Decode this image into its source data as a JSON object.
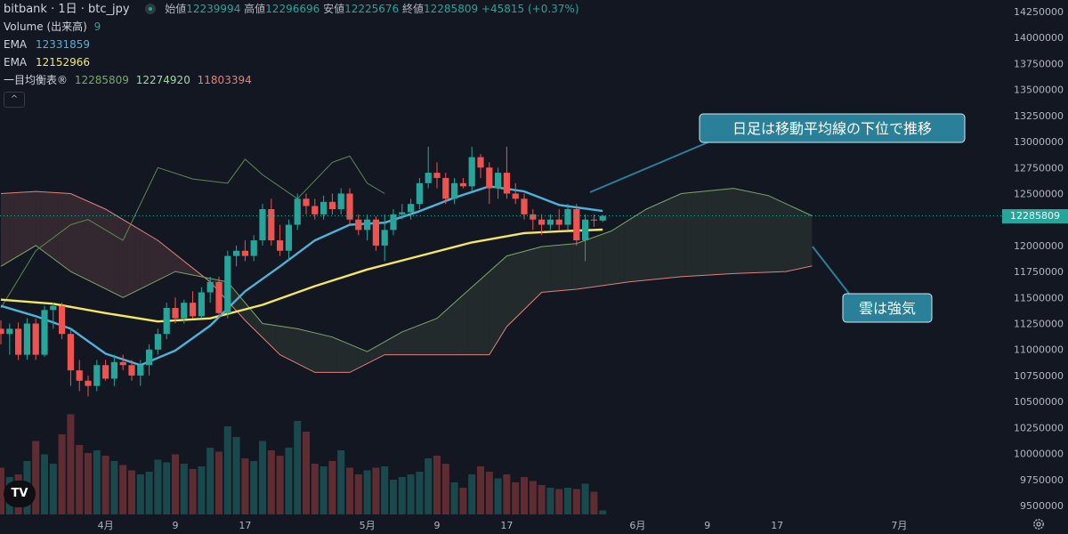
{
  "header": {
    "symbol": "bitbank · 1日 · btc_jpy",
    "open_label": "始値",
    "open_value": "12239994",
    "high_label": "高値",
    "high_value": "12296696",
    "low_label": "安値",
    "low_value": "12225676",
    "close_label": "終値",
    "close_value": "12285809",
    "change": "+45815 (+0.37%)"
  },
  "indicators": {
    "volume_label": "Volume (出来高)",
    "volume_value": "9",
    "ema1_label": "EMA",
    "ema1_value": "12331859",
    "ema2_label": "EMA",
    "ema2_value": "12152966",
    "ichimoku_label": "一目均衡表®",
    "ichimoku_v1": "12285809",
    "ichimoku_v2": "12274920",
    "ichimoku_v3": "11803394",
    "collapse_glyph": "^"
  },
  "logo_text": "TV",
  "current_price_tag": "12285809",
  "colors": {
    "background": "#131722",
    "up": "#26a69a",
    "down": "#ef5350",
    "ema_fast": "#4fb3d9",
    "ema_slow": "#f5e663",
    "span_a": "#7ca66a",
    "span_b": "#e0827d",
    "callout": "#2a7f99"
  },
  "chart_data": {
    "type": "candlestick",
    "interval": "1D",
    "ylim": [
      9400000,
      14350000
    ],
    "y_ticks": [
      9500000,
      9750000,
      10000000,
      10250000,
      10500000,
      10750000,
      11000000,
      11250000,
      11500000,
      11750000,
      12000000,
      12250000,
      12500000,
      12750000,
      13000000,
      13250000,
      13500000,
      13750000,
      14000000,
      14250000
    ],
    "x_ticks": [
      {
        "label": "4月",
        "day": 12
      },
      {
        "label": "9",
        "day": 20
      },
      {
        "label": "17",
        "day": 28
      },
      {
        "label": "5月",
        "day": 42
      },
      {
        "label": "9",
        "day": 50
      },
      {
        "label": "17",
        "day": 58
      },
      {
        "label": "6月",
        "day": 73
      },
      {
        "label": "9",
        "day": 81
      },
      {
        "label": "17",
        "day": 89
      },
      {
        "label": "7月",
        "day": 103
      }
    ],
    "candles": [
      [
        0,
        11200000,
        11280000,
        11050000,
        11150000
      ],
      [
        1,
        11150000,
        11250000,
        10950000,
        11200000
      ],
      [
        2,
        11200000,
        11260000,
        10900000,
        10950000
      ],
      [
        3,
        10950000,
        11300000,
        10900000,
        11250000
      ],
      [
        4,
        11250000,
        11300000,
        10900000,
        10950000
      ],
      [
        5,
        10950000,
        11420000,
        10930000,
        11380000
      ],
      [
        6,
        11380000,
        11450000,
        11200000,
        11420000
      ],
      [
        7,
        11420000,
        11450000,
        11100000,
        11150000
      ],
      [
        8,
        11150000,
        11200000,
        10650000,
        10800000
      ],
      [
        9,
        10800000,
        10900000,
        10600000,
        10700000
      ],
      [
        10,
        10700000,
        10750000,
        10550000,
        10650000
      ],
      [
        11,
        10650000,
        10900000,
        10600000,
        10850000
      ],
      [
        12,
        10850000,
        10900000,
        10700000,
        10720000
      ],
      [
        13,
        10720000,
        10950000,
        10650000,
        10880000
      ],
      [
        14,
        10880000,
        10950000,
        10800000,
        10850000
      ],
      [
        15,
        10850000,
        10900000,
        10700000,
        10750000
      ],
      [
        16,
        10750000,
        10900000,
        10650000,
        10850000
      ],
      [
        17,
        10850000,
        11050000,
        10750000,
        11000000
      ],
      [
        18,
        11000000,
        11200000,
        10950000,
        11150000
      ],
      [
        19,
        11150000,
        11450000,
        11100000,
        11400000
      ],
      [
        20,
        11400000,
        11500000,
        11250000,
        11300000
      ],
      [
        21,
        11300000,
        11480000,
        11250000,
        11450000
      ],
      [
        22,
        11450000,
        11560000,
        11300000,
        11320000
      ],
      [
        23,
        11320000,
        11600000,
        11300000,
        11550000
      ],
      [
        24,
        11550000,
        11700000,
        11450000,
        11650000
      ],
      [
        25,
        11650000,
        11700000,
        11300000,
        11350000
      ],
      [
        26,
        11350000,
        11950000,
        11300000,
        11900000
      ],
      [
        27,
        11900000,
        12000000,
        11800000,
        11950000
      ],
      [
        28,
        11950000,
        12050000,
        11850000,
        11900000
      ],
      [
        29,
        11900000,
        12100000,
        11850000,
        12050000
      ],
      [
        30,
        12050000,
        12400000,
        12000000,
        12350000
      ],
      [
        31,
        12350000,
        12450000,
        12000000,
        12050000
      ],
      [
        32,
        12050000,
        12200000,
        11900000,
        11950000
      ],
      [
        33,
        11950000,
        12250000,
        11850000,
        12200000
      ],
      [
        34,
        12200000,
        12500000,
        12150000,
        12450000
      ],
      [
        35,
        12450000,
        12500000,
        12300000,
        12380000
      ],
      [
        36,
        12380000,
        12450000,
        12250000,
        12300000
      ],
      [
        37,
        12300000,
        12480000,
        12250000,
        12420000
      ],
      [
        38,
        12420000,
        12500000,
        12300000,
        12350000
      ],
      [
        39,
        12350000,
        12550000,
        12300000,
        12500000
      ],
      [
        40,
        12500000,
        12550000,
        12200000,
        12250000
      ],
      [
        41,
        12250000,
        12300000,
        12100000,
        12150000
      ],
      [
        42,
        12150000,
        12300000,
        12050000,
        12250000
      ],
      [
        43,
        12250000,
        12280000,
        11950000,
        12000000
      ],
      [
        44,
        12000000,
        12300000,
        11850000,
        12150000
      ],
      [
        45,
        12150000,
        12350000,
        12100000,
        12300000
      ],
      [
        46,
        12300000,
        12400000,
        12250000,
        12320000
      ],
      [
        47,
        12320000,
        12450000,
        12250000,
        12400000
      ],
      [
        48,
        12400000,
        12650000,
        12350000,
        12600000
      ],
      [
        49,
        12600000,
        12950000,
        12550000,
        12700000
      ],
      [
        50,
        12700000,
        12800000,
        12550000,
        12650000
      ],
      [
        51,
        12650000,
        12700000,
        12400000,
        12450000
      ],
      [
        52,
        12450000,
        12650000,
        12400000,
        12600000
      ],
      [
        53,
        12600000,
        12650000,
        12550000,
        12570000
      ],
      [
        54,
        12570000,
        12950000,
        12520000,
        12850000
      ],
      [
        55,
        12850000,
        12880000,
        12650000,
        12750000
      ],
      [
        56,
        12750000,
        12800000,
        12400000,
        12550000
      ],
      [
        57,
        12550000,
        12750000,
        12450000,
        12700000
      ],
      [
        58,
        12700000,
        12950000,
        12450000,
        12500000
      ],
      [
        59,
        12500000,
        12600000,
        12400000,
        12450000
      ],
      [
        60,
        12450000,
        12500000,
        12250000,
        12300000
      ],
      [
        61,
        12300000,
        12350000,
        12150000,
        12250000
      ],
      [
        62,
        12250000,
        12300000,
        12100000,
        12200000
      ],
      [
        63,
        12200000,
        12300000,
        12150000,
        12250000
      ],
      [
        64,
        12250000,
        12350000,
        12150000,
        12200000
      ],
      [
        65,
        12200000,
        12400000,
        12150000,
        12350000
      ],
      [
        66,
        12350000,
        12400000,
        12000000,
        12050000
      ],
      [
        67,
        12050000,
        12300000,
        11850000,
        12250000
      ],
      [
        68,
        12250000,
        12300000,
        12180000,
        12240000
      ],
      [
        69,
        12239994,
        12296696,
        12225676,
        12285809
      ]
    ],
    "ema_fast": [
      [
        0,
        11420000
      ],
      [
        4,
        11320000
      ],
      [
        8,
        11200000
      ],
      [
        12,
        10960000
      ],
      [
        16,
        10850000
      ],
      [
        20,
        10990000
      ],
      [
        24,
        11230000
      ],
      [
        28,
        11560000
      ],
      [
        32,
        11800000
      ],
      [
        36,
        12050000
      ],
      [
        40,
        12200000
      ],
      [
        44,
        12220000
      ],
      [
        48,
        12330000
      ],
      [
        52,
        12460000
      ],
      [
        56,
        12570000
      ],
      [
        60,
        12520000
      ],
      [
        64,
        12390000
      ],
      [
        69,
        12331859
      ]
    ],
    "ema_slow": [
      [
        0,
        11480000
      ],
      [
        6,
        11440000
      ],
      [
        12,
        11350000
      ],
      [
        18,
        11270000
      ],
      [
        24,
        11300000
      ],
      [
        30,
        11430000
      ],
      [
        36,
        11610000
      ],
      [
        42,
        11770000
      ],
      [
        48,
        11900000
      ],
      [
        54,
        12030000
      ],
      [
        60,
        12120000
      ],
      [
        65,
        12140000
      ],
      [
        69,
        12152966
      ]
    ],
    "tenkan_like_span_a": [
      [
        0,
        11800000
      ],
      [
        4,
        12000000
      ],
      [
        8,
        11750000
      ],
      [
        14,
        11500000
      ],
      [
        20,
        11750000
      ],
      [
        26,
        11650000
      ],
      [
        30,
        11250000
      ],
      [
        34,
        11200000
      ],
      [
        38,
        11120000
      ],
      [
        42,
        10980000
      ],
      [
        46,
        11170000
      ],
      [
        50,
        11300000
      ],
      [
        54,
        11600000
      ],
      [
        58,
        11900000
      ],
      [
        62,
        11990000
      ],
      [
        66,
        12020000
      ],
      [
        70,
        12140000
      ],
      [
        74,
        12350000
      ],
      [
        78,
        12500000
      ],
      [
        84,
        12550000
      ],
      [
        88,
        12480000
      ],
      [
        93,
        12285809
      ]
    ],
    "span_b": [
      [
        0,
        12500000
      ],
      [
        4,
        12520000
      ],
      [
        8,
        12500000
      ],
      [
        12,
        12350000
      ],
      [
        18,
        12050000
      ],
      [
        24,
        11650000
      ],
      [
        28,
        11280000
      ],
      [
        32,
        10950000
      ],
      [
        36,
        10780000
      ],
      [
        40,
        10780000
      ],
      [
        44,
        10950000
      ],
      [
        50,
        10950000
      ],
      [
        56,
        10950000
      ],
      [
        58,
        11220000
      ],
      [
        62,
        11550000
      ],
      [
        66,
        11580000
      ],
      [
        72,
        11650000
      ],
      [
        78,
        11700000
      ],
      [
        84,
        11730000
      ],
      [
        90,
        11750000
      ],
      [
        93,
        11803394
      ]
    ],
    "lagging_span": [
      [
        0,
        11400000
      ],
      [
        4,
        11950000
      ],
      [
        8,
        12200000
      ],
      [
        10,
        12250000
      ],
      [
        14,
        12050000
      ],
      [
        18,
        12750000
      ],
      [
        22,
        12640000
      ],
      [
        26,
        12600000
      ],
      [
        28,
        12830000
      ],
      [
        30,
        12680000
      ],
      [
        34,
        12450000
      ],
      [
        38,
        12800000
      ],
      [
        40,
        12860000
      ],
      [
        42,
        12600000
      ],
      [
        44,
        12500000
      ]
    ],
    "volume": [
      [
        0,
        0.35
      ],
      [
        1,
        0.28
      ],
      [
        2,
        0.3
      ],
      [
        3,
        0.4
      ],
      [
        4,
        0.55
      ],
      [
        5,
        0.45
      ],
      [
        6,
        0.38
      ],
      [
        7,
        0.6
      ],
      [
        8,
        0.75
      ],
      [
        9,
        0.52
      ],
      [
        10,
        0.46
      ],
      [
        11,
        0.48
      ],
      [
        12,
        0.44
      ],
      [
        13,
        0.4
      ],
      [
        14,
        0.37
      ],
      [
        15,
        0.33
      ],
      [
        16,
        0.3
      ],
      [
        17,
        0.32
      ],
      [
        18,
        0.41
      ],
      [
        19,
        0.39
      ],
      [
        20,
        0.45
      ],
      [
        21,
        0.38
      ],
      [
        22,
        0.34
      ],
      [
        23,
        0.36
      ],
      [
        24,
        0.5
      ],
      [
        25,
        0.47
      ],
      [
        26,
        0.66
      ],
      [
        27,
        0.58
      ],
      [
        28,
        0.42
      ],
      [
        29,
        0.4
      ],
      [
        30,
        0.55
      ],
      [
        31,
        0.48
      ],
      [
        32,
        0.44
      ],
      [
        33,
        0.5
      ],
      [
        34,
        0.7
      ],
      [
        35,
        0.62
      ],
      [
        36,
        0.38
      ],
      [
        37,
        0.36
      ],
      [
        38,
        0.4
      ],
      [
        39,
        0.48
      ],
      [
        40,
        0.35
      ],
      [
        41,
        0.3
      ],
      [
        42,
        0.33
      ],
      [
        43,
        0.35
      ],
      [
        44,
        0.36
      ],
      [
        45,
        0.26
      ],
      [
        46,
        0.28
      ],
      [
        47,
        0.3
      ],
      [
        48,
        0.32
      ],
      [
        49,
        0.42
      ],
      [
        50,
        0.44
      ],
      [
        51,
        0.38
      ],
      [
        52,
        0.24
      ],
      [
        53,
        0.2
      ],
      [
        54,
        0.3
      ],
      [
        55,
        0.36
      ],
      [
        56,
        0.32
      ],
      [
        57,
        0.27
      ],
      [
        58,
        0.3
      ],
      [
        59,
        0.24
      ],
      [
        60,
        0.28
      ],
      [
        61,
        0.25
      ],
      [
        62,
        0.22
      ],
      [
        63,
        0.2
      ],
      [
        64,
        0.19
      ],
      [
        65,
        0.2
      ],
      [
        66,
        0.19
      ],
      [
        67,
        0.23
      ],
      [
        68,
        0.17
      ],
      [
        69,
        0.03
      ]
    ],
    "annotations": [
      {
        "text": "日足は移動平均線の下位で推移"
      },
      {
        "text": "雲は強気"
      }
    ]
  }
}
